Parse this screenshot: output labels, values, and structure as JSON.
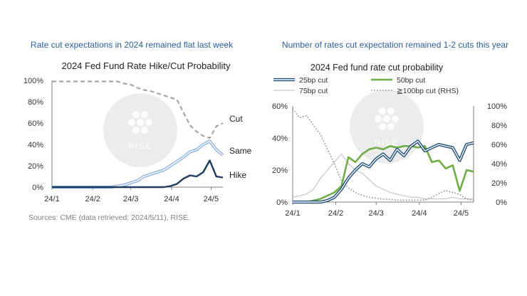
{
  "left": {
    "heading": "Rate cut expectations in 2024 remained flat last week",
    "sources": "Sources: CME (data retrieved: 2024/5/11), RISE.",
    "watermark": "RISE",
    "chart_data": {
      "type": "line",
      "title": "2024 Fed Fund Rate Hike/Cut Probability",
      "y_ticks": [
        "100%",
        "80%",
        "60%",
        "40%",
        "20%",
        "0%"
      ],
      "ylim": [
        0,
        100
      ],
      "x_ticks": [
        "24/1",
        "24/2",
        "24/3",
        "24/4",
        "24/5"
      ],
      "xlim": [
        0,
        130
      ],
      "x_tick_days": [
        0,
        31,
        60,
        91,
        121
      ],
      "series": [
        {
          "name": "Cut",
          "label": "Cut",
          "color": "#a6a6a6",
          "style": "dashed",
          "x": [
            0,
            5,
            10,
            15,
            20,
            25,
            30,
            35,
            40,
            45,
            50,
            55,
            60,
            65,
            70,
            75,
            80,
            85,
            90,
            95,
            100,
            105,
            110,
            115,
            120,
            125,
            130
          ],
          "y": [
            99,
            99,
            99,
            99,
            99,
            99,
            99,
            99,
            99,
            99,
            99,
            97,
            96,
            93,
            91,
            90,
            88,
            86,
            84,
            82,
            70,
            58,
            52,
            48,
            46,
            57,
            60
          ]
        },
        {
          "name": "Same",
          "label": "Same",
          "color": "#8fb4e3",
          "style": "double",
          "x": [
            0,
            5,
            10,
            15,
            20,
            25,
            30,
            35,
            40,
            45,
            50,
            55,
            60,
            65,
            70,
            75,
            80,
            85,
            90,
            95,
            100,
            105,
            110,
            115,
            120,
            125,
            130
          ],
          "y": [
            0,
            0,
            0,
            0,
            0,
            0,
            0,
            0,
            0,
            0,
            1,
            2,
            4,
            6,
            10,
            12,
            14,
            16,
            20,
            24,
            28,
            33,
            35,
            40,
            43,
            35,
            30
          ]
        },
        {
          "name": "Hike",
          "label": "Hike",
          "color": "#1f3a5f",
          "style": "solid",
          "x": [
            0,
            5,
            10,
            15,
            20,
            25,
            30,
            35,
            40,
            45,
            50,
            55,
            60,
            65,
            70,
            75,
            80,
            85,
            90,
            95,
            100,
            105,
            110,
            115,
            120,
            125,
            130
          ],
          "y": [
            0,
            0,
            0,
            0,
            0,
            0,
            0,
            0,
            0,
            0,
            0,
            0,
            0,
            0,
            0,
            0,
            0,
            0,
            1,
            3,
            8,
            11,
            10,
            14,
            25,
            10,
            9
          ]
        }
      ]
    }
  },
  "right": {
    "heading": "Number of rates cut expectation remained 1-2 cuts this year",
    "watermark": "RISE",
    "chart_data": {
      "type": "line",
      "title": "2024 Fed fund rate cut probability",
      "y_ticks_left": [
        "60%",
        "40%",
        "20%",
        "0%"
      ],
      "ylim_left": [
        0,
        60
      ],
      "y_ticks_right": [
        "100%",
        "80%",
        "60%",
        "40%",
        "20%",
        "0%"
      ],
      "ylim_right": [
        0,
        100
      ],
      "x_ticks": [
        "24/1",
        "24/2",
        "24/3",
        "24/4",
        "24/5"
      ],
      "xlim": [
        0,
        130
      ],
      "x_tick_days": [
        0,
        31,
        60,
        91,
        121
      ],
      "legend": [
        "25bp cut",
        "50bp cut",
        "75bp cut",
        "≧100bp cut (RHS)"
      ],
      "series": [
        {
          "name": "25bp cut",
          "color": "#1f4e79",
          "style": "double",
          "axis": "left",
          "x": [
            0,
            5,
            10,
            15,
            20,
            25,
            30,
            35,
            40,
            45,
            50,
            55,
            60,
            65,
            70,
            75,
            80,
            85,
            90,
            95,
            100,
            105,
            110,
            115,
            120,
            125,
            130
          ],
          "y": [
            0,
            0,
            0,
            0,
            0,
            1,
            3,
            8,
            15,
            20,
            24,
            22,
            27,
            30,
            26,
            33,
            29,
            35,
            38,
            32,
            34,
            36,
            35,
            34,
            26,
            36,
            37
          ]
        },
        {
          "name": "50bp cut",
          "color": "#70ad47",
          "style": "solid",
          "axis": "left",
          "x": [
            0,
            5,
            10,
            15,
            20,
            25,
            30,
            35,
            40,
            45,
            50,
            55,
            60,
            65,
            70,
            75,
            80,
            85,
            90,
            95,
            100,
            105,
            110,
            115,
            120,
            125,
            130
          ],
          "y": [
            0,
            0,
            0,
            1,
            2,
            4,
            6,
            10,
            28,
            25,
            30,
            33,
            34,
            33,
            35,
            34,
            35,
            35,
            34,
            35,
            25,
            26,
            21,
            23,
            7,
            20,
            19
          ]
        },
        {
          "name": "75bp cut",
          "color": "#c7c7c7",
          "style": "solid",
          "axis": "left",
          "x": [
            0,
            5,
            10,
            15,
            20,
            25,
            30,
            35,
            40,
            45,
            50,
            55,
            60,
            65,
            70,
            75,
            80,
            85,
            90,
            95,
            100,
            105,
            110,
            115,
            120,
            125,
            130
          ],
          "y": [
            3,
            4,
            5,
            8,
            15,
            20,
            25,
            30,
            24,
            20,
            18,
            14,
            10,
            8,
            6,
            5,
            4,
            3,
            3,
            2,
            2,
            2,
            2,
            3,
            2,
            2,
            2
          ]
        },
        {
          "name": "≧100bp cut (RHS)",
          "color": "#8c8c8c",
          "style": "dotted",
          "axis": "right",
          "x": [
            0,
            5,
            10,
            15,
            20,
            25,
            30,
            35,
            40,
            45,
            50,
            55,
            60,
            65,
            70,
            75,
            80,
            85,
            90,
            95,
            100,
            105,
            110,
            115,
            120,
            125,
            130
          ],
          "y": [
            97,
            88,
            90,
            80,
            70,
            55,
            40,
            22,
            15,
            10,
            7,
            5,
            4,
            3,
            3,
            2,
            2,
            2,
            2,
            2,
            5,
            9,
            12,
            10,
            8,
            3,
            2
          ]
        }
      ]
    }
  }
}
